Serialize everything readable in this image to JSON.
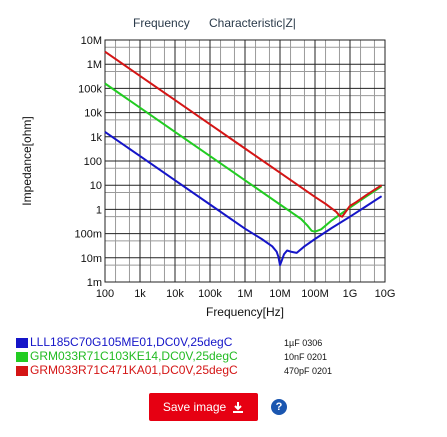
{
  "chart_data": {
    "type": "line",
    "title_left": "Frequency",
    "title_right": "Characteristic|Z|",
    "xlabel": "Frequency[Hz]",
    "ylabel": "Impedance[ohm]",
    "x_scale": "log",
    "y_scale": "log",
    "xlim": [
      100,
      10000000000
    ],
    "ylim": [
      0.001,
      10000000
    ],
    "x_ticks": [
      100,
      1000,
      10000,
      100000,
      1000000,
      10000000,
      100000000,
      1000000000,
      10000000000
    ],
    "x_tick_labels": [
      "100",
      "1k",
      "10k",
      "100k",
      "1M",
      "10M",
      "100M",
      "1G",
      "10G"
    ],
    "y_ticks": [
      10000000,
      1000000,
      100000,
      10000,
      1000,
      100,
      10,
      1,
      0.1,
      0.01,
      0.001
    ],
    "y_tick_labels": [
      "10M",
      "1M",
      "100k",
      "10k",
      "1k",
      "100",
      "10",
      "1",
      "100m",
      "10m",
      "1m"
    ],
    "grid": true,
    "series": [
      {
        "name": "LLL185C70G105ME01,DC0V,25degC",
        "note": "1µF 0306",
        "color": "#1515c8",
        "x": [
          100,
          1000,
          10000,
          100000,
          1000000,
          3000000,
          6000000,
          8000000,
          9000000,
          10000000,
          11000000,
          13000000,
          16000000,
          20000000,
          30000000,
          50000000,
          100000000,
          300000000,
          1000000000,
          3000000000,
          8000000000
        ],
        "y": [
          1600,
          160,
          16,
          1.6,
          0.16,
          0.06,
          0.03,
          0.018,
          0.011,
          0.005,
          0.007,
          0.014,
          0.02,
          0.018,
          0.016,
          0.03,
          0.06,
          0.17,
          0.5,
          1.4,
          3.5
        ]
      },
      {
        "name": "GRM033R71C103KE14,DC0V,25degC",
        "note": "10nF 0201",
        "color": "#22cc22",
        "x": [
          100,
          1000,
          10000,
          100000,
          1000000,
          10000000,
          20000000,
          40000000,
          60000000,
          80000000,
          100000000,
          150000000,
          300000000,
          1000000000,
          3000000000,
          8000000000
        ],
        "y": [
          160000,
          16000,
          1600,
          160,
          16,
          1.6,
          0.8,
          0.4,
          0.22,
          0.13,
          0.12,
          0.15,
          0.35,
          1.2,
          3.5,
          9
        ]
      },
      {
        "name": "GRM033R71C471KA01,DC0V,25degC",
        "note": "470pF 0201",
        "color": "#d41515",
        "x": [
          100,
          1000,
          10000,
          100000,
          1000000,
          10000000,
          100000000,
          200000000,
          300000000,
          400000000,
          500000000,
          600000000,
          800000000,
          1000000000,
          1500000000,
          3000000000,
          8000000000
        ],
        "y": [
          3300000,
          330000,
          33000,
          3300,
          330,
          33,
          3.3,
          1.7,
          1.1,
          0.8,
          0.55,
          0.5,
          0.9,
          1.4,
          2,
          4,
          10
        ]
      }
    ]
  },
  "toolbar": {
    "save_label": "Save image",
    "help_label": "?"
  }
}
